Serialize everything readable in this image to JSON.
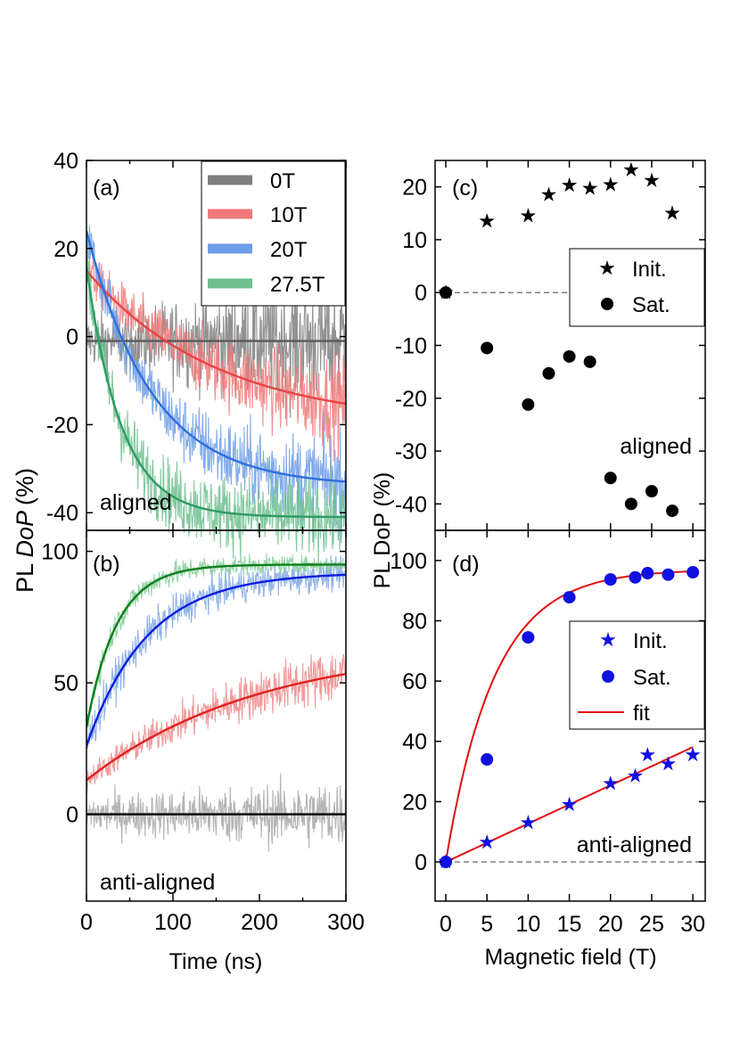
{
  "chart_data": [
    {
      "panel": "a",
      "type": "line",
      "label": "(a)",
      "annotation": "aligned",
      "xlabel": "Time (ns)",
      "ylabel": "PL DoP (%)",
      "xlim": [
        0,
        300
      ],
      "ylim": [
        -44,
        40
      ],
      "yticks": [
        40,
        20,
        0,
        -20,
        -40
      ],
      "ytick_labels": [
        "40",
        "20",
        "0",
        "-20",
        "-40"
      ],
      "legend": {
        "position": "top-right",
        "entries": [
          "0T",
          "10T",
          "20T",
          "27.5T"
        ]
      },
      "series": [
        {
          "name": "0T",
          "color": "#7f7f7f",
          "fit_color": "#5a5a5a",
          "fit_start": -1,
          "fit_end": -1,
          "tau_ns": 60,
          "noise_start": 3,
          "noise_end": 9,
          "fit_samples": [
            -1,
            -1,
            -1,
            -1
          ]
        },
        {
          "name": "10T",
          "color": "#f07a7a",
          "fit_color": "#e84545",
          "fit_start": 15,
          "fit_end": -20,
          "tau_ns": 150,
          "noise_start": 2.5,
          "noise_end": 6,
          "fit_samples": [
            15,
            -1,
            -8.6,
            -14.7
          ]
        },
        {
          "name": "20T",
          "color": "#6f9ee8",
          "fit_color": "#2e6fdc",
          "fit_start": 24,
          "fit_end": -34,
          "tau_ns": 75,
          "noise_start": 3,
          "noise_end": 6,
          "fit_samples": [
            24,
            -19.5,
            -30.3,
            -32.8
          ]
        },
        {
          "name": "27.5T",
          "color": "#6fbf8f",
          "fit_color": "#2e9c62",
          "fit_start": 16,
          "fit_end": -41,
          "tau_ns": 40,
          "noise_start": 4,
          "noise_end": 5,
          "fit_samples": [
            16,
            -33.3,
            -40.3,
            -40.9
          ]
        }
      ]
    },
    {
      "panel": "b",
      "type": "line",
      "label": "(b)",
      "annotation": "anti-aligned",
      "xlabel": "Time (ns)",
      "xlim": [
        0,
        300
      ],
      "xticks": [
        0,
        100,
        200,
        300
      ],
      "xtick_labels": [
        "0",
        "100",
        "200",
        "300"
      ],
      "ylim": [
        -33,
        108
      ],
      "yticks": [
        100,
        50,
        0
      ],
      "ytick_labels": [
        "100",
        "50",
        "0"
      ],
      "series": [
        {
          "name": "0T",
          "color": "#a8a8a8",
          "fit_color": "#000000",
          "fit_start": 0,
          "fit_end": 0,
          "tau_ns": 60,
          "noise_start": 4,
          "noise_end": 7,
          "fit_samples": [
            0,
            0,
            0,
            0
          ]
        },
        {
          "name": "10T",
          "color": "#f08a8a",
          "fit_color": "#e02020",
          "fit_start": 13,
          "fit_end": 65,
          "tau_ns": 200,
          "noise_start": 2.5,
          "noise_end": 6,
          "fit_samples": [
            13,
            30,
            43,
            52
          ]
        },
        {
          "name": "20T",
          "color": "#7fa7e6",
          "fit_color": "#0b1ee0",
          "fit_start": 26,
          "fit_end": 92,
          "tau_ns": 70,
          "noise_start": 4,
          "noise_end": 3,
          "fit_samples": [
            26,
            77,
            88,
            91
          ]
        },
        {
          "name": "27.5T",
          "color": "#86cf9a",
          "fit_color": "#0e7f1e",
          "fit_start": 33,
          "fit_end": 95,
          "tau_ns": 35,
          "noise_start": 3,
          "noise_end": 1.5,
          "fit_samples": [
            33,
            94,
            95,
            95
          ]
        }
      ]
    },
    {
      "panel": "c",
      "type": "scatter",
      "label": "(c)",
      "annotation": "aligned",
      "ylabel": "PL DoP (%)",
      "xlim": [
        -1.3,
        31.5
      ],
      "ylim": [
        -45,
        25
      ],
      "yticks": [
        20,
        10,
        0,
        -10,
        -20,
        -30,
        -40
      ],
      "ytick_labels": [
        "20",
        "10",
        "0",
        "-10",
        "-20",
        "-30",
        "-40"
      ],
      "legend": {
        "position": "upper-right",
        "entries": [
          "Init.",
          "Sat."
        ]
      },
      "series": [
        {
          "name": "Init.",
          "marker": "star",
          "color": "#000000",
          "x": [
            0,
            5,
            10,
            12.5,
            15,
            17.5,
            20,
            22.5,
            25,
            27.5
          ],
          "y": [
            0,
            13.5,
            14.5,
            18.5,
            20.3,
            19.7,
            20.4,
            23.2,
            21.2,
            15
          ]
        },
        {
          "name": "Sat.",
          "marker": "circle",
          "color": "#000000",
          "x": [
            0,
            5,
            10,
            12.5,
            15,
            17.5,
            20,
            22.5,
            25,
            27.5
          ],
          "y": [
            0,
            -10.5,
            -21.2,
            -15.3,
            -12.1,
            -13.1,
            -35.1,
            -40,
            -37.6,
            -41.3
          ]
        }
      ],
      "reference_line": {
        "y": 0,
        "style": "dashed"
      }
    },
    {
      "panel": "d",
      "type": "scatter",
      "label": "(d)",
      "annotation": "anti-aligned",
      "xlabel": "Magnetic field (T)",
      "ylabel": "PL DoP (%)",
      "xlim": [
        -1.3,
        31.5
      ],
      "xticks": [
        0,
        5,
        10,
        15,
        20,
        25,
        30
      ],
      "xtick_labels": [
        "0",
        "5",
        "10",
        "15",
        "20",
        "25",
        "30"
      ],
      "ylim": [
        -13,
        110
      ],
      "yticks": [
        100,
        80,
        60,
        40,
        20,
        0
      ],
      "ytick_labels": [
        "100",
        "80",
        "60",
        "40",
        "20",
        "0"
      ],
      "legend": {
        "position": "center-right",
        "entries": [
          "Init.",
          "Sat.",
          "fit"
        ]
      },
      "series": [
        {
          "name": "Init.",
          "marker": "star",
          "color": "#1010e0",
          "x": [
            0,
            5,
            10,
            15,
            20,
            23,
            24.5,
            27,
            30
          ],
          "y": [
            0,
            6.5,
            13,
            19,
            26,
            28.5,
            35.5,
            32.5,
            35.5
          ]
        },
        {
          "name": "Sat.",
          "marker": "circle",
          "color": "#1010e0",
          "x": [
            0,
            5,
            10,
            15,
            20,
            23,
            24.5,
            27,
            30
          ],
          "y": [
            0,
            34,
            74.5,
            87.8,
            93.7,
            94.4,
            95.8,
            95.3,
            96.1
          ]
        }
      ],
      "fits": [
        {
          "name": "fit",
          "color": "#e01010",
          "kind": "saturating",
          "amplitude": 97,
          "scale_T": 5.9,
          "samples_x": [
            0,
            5,
            10,
            20,
            30
          ],
          "samples_y": [
            0,
            55.5,
            79.4,
            94.3,
            96.4
          ]
        },
        {
          "name": "fit-linear",
          "color": "#e01010",
          "kind": "linear",
          "slope": 1.27,
          "samples_x": [
            0,
            30
          ],
          "samples_y": [
            0,
            38
          ]
        }
      ],
      "reference_line": {
        "y": 0,
        "style": "dashed"
      }
    }
  ]
}
